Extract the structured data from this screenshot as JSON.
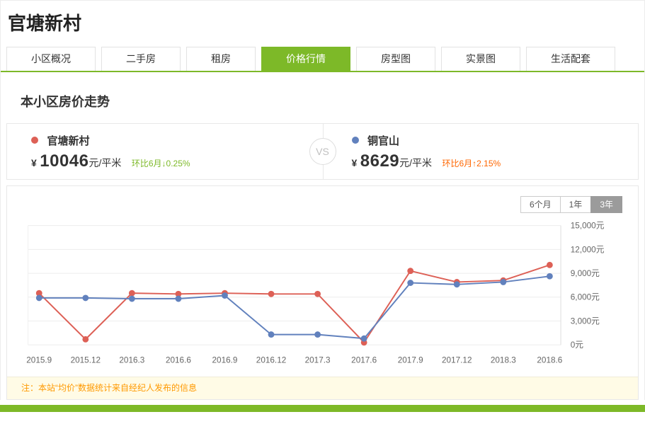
{
  "page": {
    "title": "官塘新村"
  },
  "tabs": [
    {
      "label": "小区概况",
      "active": false
    },
    {
      "label": "二手房",
      "active": false
    },
    {
      "label": "租房",
      "active": false
    },
    {
      "label": "价格行情",
      "active": true
    },
    {
      "label": "房型图",
      "active": false
    },
    {
      "label": "实景图",
      "active": false
    },
    {
      "label": "生活配套",
      "active": false
    }
  ],
  "section_title": "本小区房价走势",
  "comparison": {
    "vs_label": "VS",
    "left": {
      "name": "官塘新村",
      "currency": "¥",
      "price": "10046",
      "unit": "元/平米",
      "change_label": "环比6月",
      "change_arrow": "↓",
      "change_value": "0.25%",
      "trend": "down"
    },
    "right": {
      "name": "铜官山",
      "currency": "¥",
      "price": "8629",
      "unit": "元/平米",
      "change_label": "环比6月",
      "change_arrow": "↑",
      "change_value": "2.15%",
      "trend": "up"
    }
  },
  "range_buttons": [
    {
      "label": "6个月",
      "active": false
    },
    {
      "label": "1年",
      "active": false
    },
    {
      "label": "3年",
      "active": true
    }
  ],
  "chart_data": {
    "type": "line",
    "x": [
      "2015.9",
      "2015.12",
      "2016.3",
      "2016.6",
      "2016.9",
      "2016.12",
      "2017.3",
      "2017.6",
      "2017.9",
      "2017.12",
      "2018.3",
      "2018.6"
    ],
    "series": [
      {
        "name": "官塘新村",
        "color": "#dd6056",
        "values": [
          6500,
          700,
          6500,
          6400,
          6500,
          6400,
          6400,
          300,
          9300,
          7900,
          8100,
          10046
        ]
      },
      {
        "name": "铜官山",
        "color": "#6181bd",
        "values": [
          5900,
          5900,
          5800,
          5800,
          6200,
          1300,
          1300,
          800,
          7800,
          7600,
          7900,
          8629
        ]
      }
    ],
    "ylim": [
      0,
      15000
    ],
    "ytick_step": 3000,
    "ytick_suffix": "元",
    "grid": true,
    "legend_position": "none"
  },
  "footnote": "注：本站“均价”数据统计来自经纪人发布的信息",
  "colors": {
    "accent_green": "#7db928",
    "series_red": "#dd6056",
    "series_blue": "#6181bd",
    "up_orange": "#ff6600",
    "note_orange": "#ff9900"
  }
}
